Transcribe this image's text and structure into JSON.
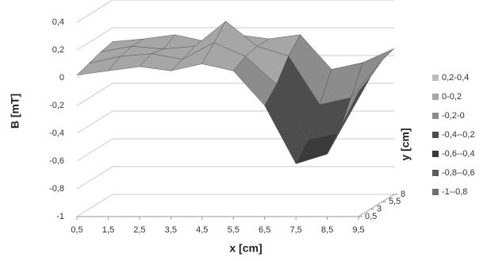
{
  "chart_data": {
    "type": "surface",
    "x_label": "x [cm]",
    "y_label": "y [cm]",
    "z_label": "B [mT]",
    "x": [
      0.5,
      1.5,
      2.5,
      3.5,
      4.5,
      5.5,
      6.5,
      7.5,
      8.5,
      9.5
    ],
    "y": [
      0.5,
      3,
      5.5,
      8
    ],
    "values": [
      [
        0.02,
        0.05,
        0.08,
        0.05,
        0.1,
        0.05,
        -0.2,
        -0.62,
        -0.55,
        -0.1
      ],
      [
        0.05,
        0.1,
        0.12,
        0.08,
        0.2,
        0.1,
        -0.1,
        -0.5,
        -0.45,
        -0.05
      ],
      [
        0.08,
        0.12,
        0.1,
        0.12,
        0.3,
        0.12,
        0.05,
        -0.3,
        -0.25,
        0.02
      ],
      [
        0.1,
        0.12,
        0.15,
        0.1,
        0.15,
        0.12,
        0.15,
        -0.1,
        -0.05,
        0.05
      ]
    ],
    "xlim": [
      0.5,
      9.5
    ],
    "xticks": [
      {
        "value": 0.5,
        "label": "0,5"
      },
      {
        "value": 1.5,
        "label": "1,5"
      },
      {
        "value": 2.5,
        "label": "2,5"
      },
      {
        "value": 3.5,
        "label": "3,5"
      },
      {
        "value": 4.5,
        "label": "4,5"
      },
      {
        "value": 5.5,
        "label": "5,5"
      },
      {
        "value": 6.5,
        "label": "6,5"
      },
      {
        "value": 7.5,
        "label": "7,5"
      },
      {
        "value": 8.5,
        "label": "8,5"
      },
      {
        "value": 9.5,
        "label": "9,5"
      }
    ],
    "ylim": [
      0.5,
      8
    ],
    "yticks": [
      {
        "value": 0.5,
        "label": "0,5"
      },
      3,
      {
        "value": 5.5,
        "label": "5,5"
      },
      8
    ],
    "zlim": [
      -1,
      0.4
    ],
    "zticks": [
      {
        "value": 0.4,
        "label": "0,4"
      },
      {
        "value": 0.2,
        "label": "0,2"
      },
      0,
      {
        "value": -0.2,
        "label": "-0,2"
      },
      {
        "value": -0.4,
        "label": "-0,4"
      },
      {
        "value": -0.6,
        "label": "-0,6"
      },
      {
        "value": -0.8,
        "label": "-0,8"
      },
      -1
    ],
    "bands": [
      {
        "name": "0,2-0,4",
        "color": "#bdbdbd",
        "range": [
          0.2,
          0.4
        ]
      },
      {
        "name": "0-0,2",
        "color": "#a6a6a6",
        "range": [
          0,
          0.2
        ]
      },
      {
        "name": "-0,2-0",
        "color": "#8c8c8c",
        "range": [
          -0.2,
          0
        ]
      },
      {
        "name": "-0,4--0,2",
        "color": "#4d4d4d",
        "range": [
          -0.4,
          -0.2
        ]
      },
      {
        "name": "-0,6--0,4",
        "color": "#3a3a3a",
        "range": [
          -0.6,
          -0.4
        ]
      },
      {
        "name": "-0,8--0,6",
        "color": "#5a5a5a",
        "range": [
          -0.8,
          -0.6
        ]
      },
      {
        "name": "-1--0,8",
        "color": "#6e6e6e",
        "range": [
          -1,
          -0.8
        ]
      }
    ]
  }
}
